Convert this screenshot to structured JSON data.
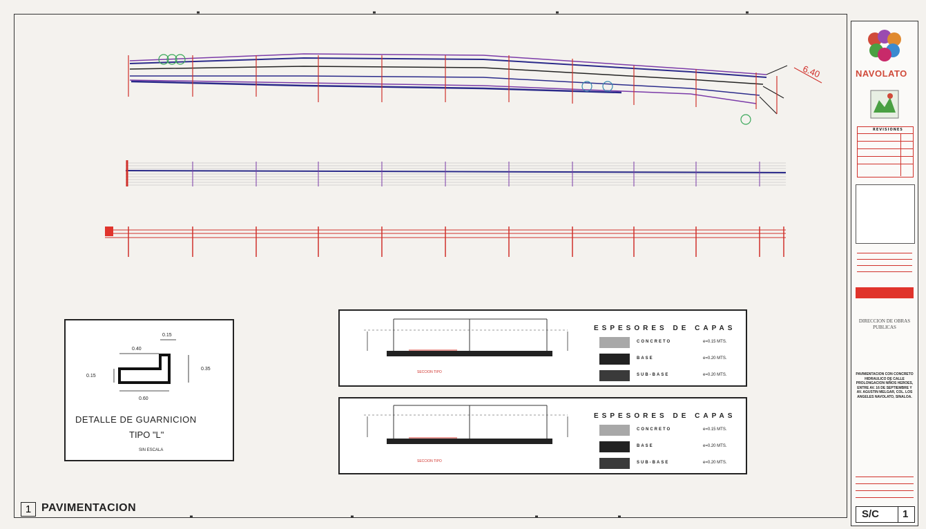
{
  "sheet": {
    "number": "1",
    "title": "PAVIMENTACION",
    "scale": "S/C",
    "sheet_no": "1"
  },
  "dimension_label": "6.40",
  "curb_detail": {
    "title_line1": "DETALLE DE GUARNICION",
    "title_line2": "TIPO \"L\"",
    "subtitle": "SIN ESCALA",
    "dim_top": "0.15",
    "dim_width_top": "0.40",
    "dim_left": "0.15",
    "dim_right": "0.35",
    "dim_bottom": "0.60"
  },
  "section_panels": [
    {
      "heading": "ESPESORES DE CAPAS",
      "layers": [
        {
          "name": "CONCRETO",
          "thickness": "e=0.15 MTS.",
          "color": "#a8a8a8"
        },
        {
          "name": "BASE",
          "thickness": "e=0.20 MTS.",
          "color": "#222222"
        },
        {
          "name": "SUB-BASE",
          "thickness": "e=0.20 MTS.",
          "color": "#3a3a3a"
        }
      ]
    },
    {
      "heading": "ESPESORES DE CAPAS",
      "layers": [
        {
          "name": "CONCRETO",
          "thickness": "e=0.15 MTS.",
          "color": "#a8a8a8"
        },
        {
          "name": "BASE",
          "thickness": "e=0.20 MTS.",
          "color": "#222222"
        },
        {
          "name": "SUB-BASE",
          "thickness": "e=0.20 MTS.",
          "color": "#3a3a3a"
        }
      ]
    }
  ],
  "title_block": {
    "brand": "NAVOLATO",
    "revisions_heading": "REVISIONES",
    "department": "DIRECCION DE OBRAS PUBLICAS",
    "project": "PAVIMENTACION CON CONCRETO HIDRAULICO DE CALLE PROLONGACION NIÑOS HEROES, ENTRE AV. 16 DE SEPTIEMBRE Y AV. AGUSTIN MELGAR, COL. LOS ANGELES NAVOLATO, SINALOA."
  },
  "colors": {
    "brand_red": "#d04a3a",
    "station_red": "#d0302a",
    "road_blue": "#2a2a8a",
    "road_purple": "#7a3aa8",
    "accent_red_block": "#e0342c",
    "logo_green": "#4aa043"
  }
}
